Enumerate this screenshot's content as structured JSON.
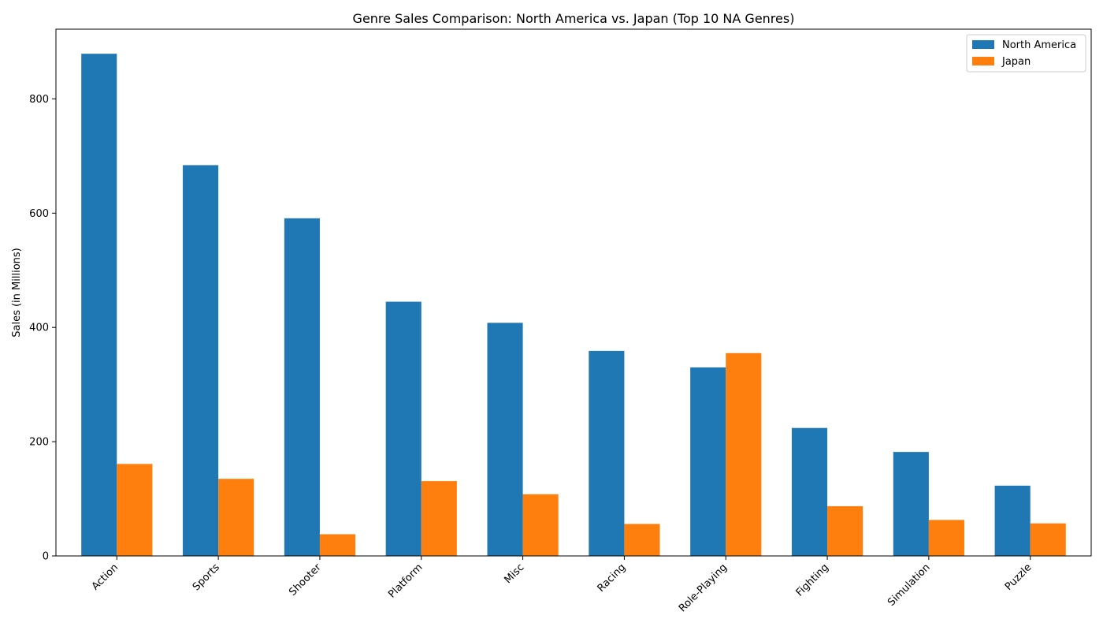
{
  "chart_data": {
    "type": "bar",
    "title": "Genre Sales Comparison: North America vs. Japan (Top 10 NA Genres)",
    "xlabel": "",
    "ylabel": "Sales (in Millions)",
    "categories": [
      "Action",
      "Sports",
      "Shooter",
      "Platform",
      "Misc",
      "Racing",
      "Role-Playing",
      "Fighting",
      "Simulation",
      "Puzzle"
    ],
    "series": [
      {
        "name": "North America",
        "color": "#1f77b4",
        "values": [
          879,
          684,
          591,
          445,
          408,
          359,
          330,
          224,
          182,
          123
        ]
      },
      {
        "name": "Japan",
        "color": "#ff7f0e",
        "values": [
          161,
          135,
          38,
          131,
          108,
          56,
          355,
          87,
          63,
          57
        ]
      }
    ],
    "ylim": [
      0,
      922
    ],
    "yticks": [
      0,
      200,
      400,
      600,
      800
    ],
    "grid": false,
    "legend_position": "top-right"
  }
}
